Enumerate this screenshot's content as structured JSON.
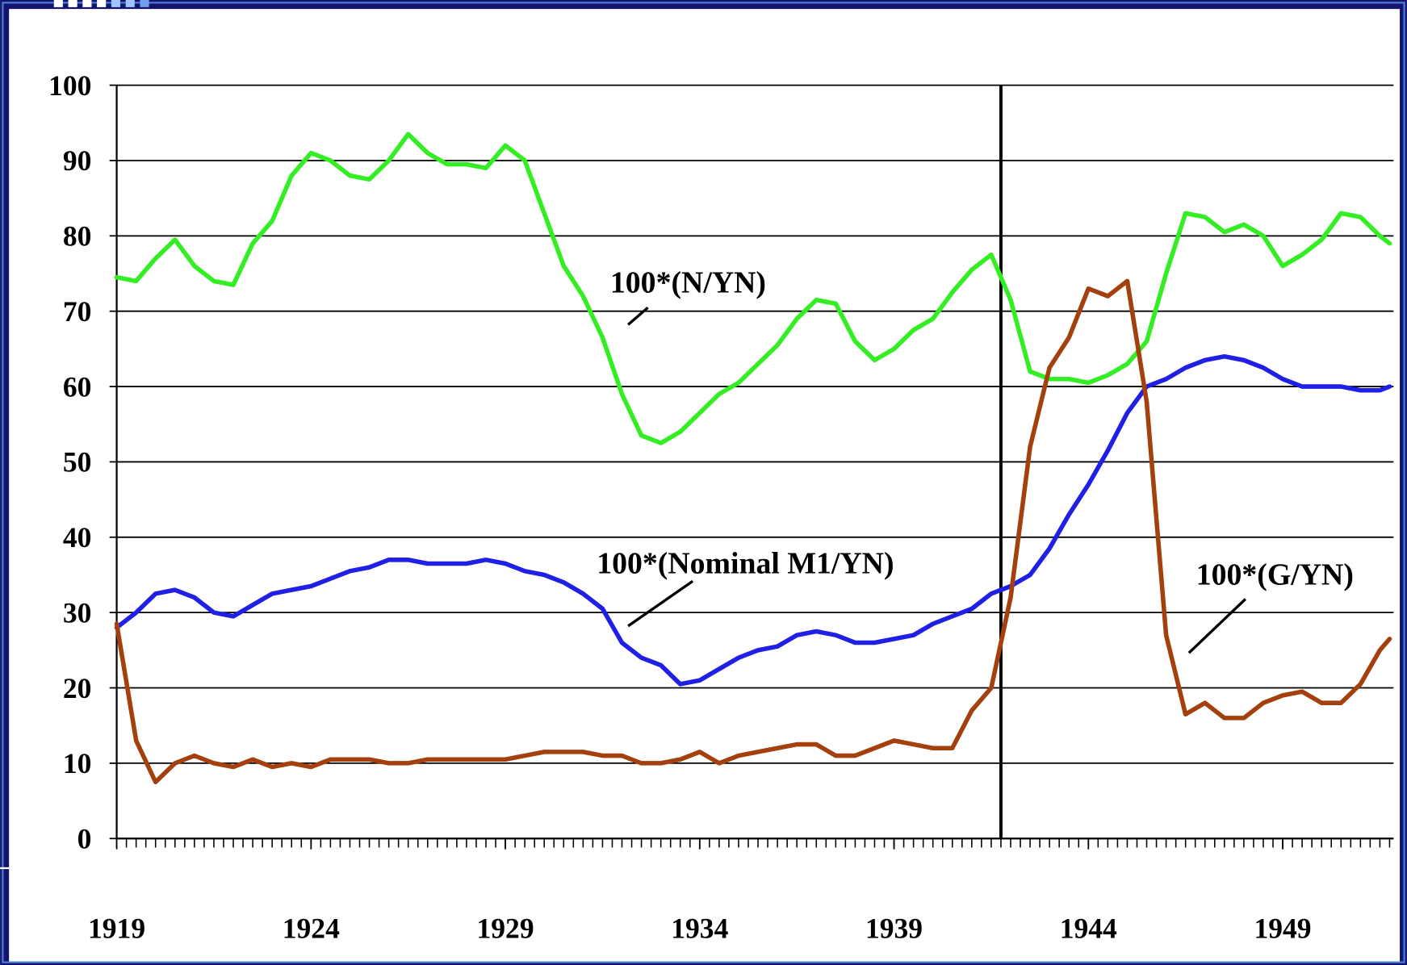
{
  "chart_data": {
    "type": "line",
    "x": [
      1919,
      1919.5,
      1920,
      1920.5,
      1921,
      1921.5,
      1922,
      1922.5,
      1923,
      1923.5,
      1924,
      1924.5,
      1925,
      1925.5,
      1926,
      1926.5,
      1927,
      1927.5,
      1928,
      1928.5,
      1929,
      1929.5,
      1930,
      1930.5,
      1931,
      1931.5,
      1932,
      1932.5,
      1933,
      1933.5,
      1934,
      1934.5,
      1935,
      1935.5,
      1936,
      1936.5,
      1937,
      1937.5,
      1938,
      1938.5,
      1939,
      1939.5,
      1940,
      1940.5,
      1941,
      1941.5,
      1942,
      1942.5,
      1943,
      1943.5,
      1944,
      1944.5,
      1945,
      1945.5,
      1946,
      1946.5,
      1947,
      1947.5,
      1948,
      1948.5,
      1949,
      1949.5,
      1950,
      1950.5,
      1951,
      1951.5,
      1951.75
    ],
    "series": [
      {
        "name": "100*(N/YN)",
        "color": "#33ee22",
        "values": [
          74.5,
          74,
          77,
          79.5,
          76,
          74,
          73.5,
          79,
          82,
          88,
          91,
          90,
          88,
          87.5,
          90,
          93.5,
          91,
          89.5,
          89.5,
          89,
          92,
          90,
          83,
          76,
          72,
          66.5,
          59,
          53.5,
          52.5,
          54,
          56.5,
          59,
          60.5,
          63,
          65.5,
          69,
          71.5,
          71,
          66,
          63.5,
          65,
          67.5,
          69,
          72.5,
          75.5,
          77.5,
          71.5,
          62,
          61,
          61,
          60.5,
          61.5,
          63,
          66,
          75,
          83,
          82.5,
          80.5,
          81.5,
          80,
          76,
          77.5,
          79.5,
          83,
          82.5,
          80,
          79
        ]
      },
      {
        "name": "100*(Nominal M1/YN)",
        "color": "#1f1fe6",
        "values": [
          28,
          30,
          32.5,
          33,
          32,
          30,
          29.5,
          31,
          32.5,
          33,
          33.5,
          34.5,
          35.5,
          36,
          37,
          37,
          36.5,
          36.5,
          36.5,
          37,
          36.5,
          35.5,
          35,
          34,
          32.5,
          30.5,
          26,
          24,
          23,
          20.5,
          21,
          22.5,
          24,
          25,
          25.5,
          27,
          27.5,
          27,
          26,
          26,
          26.5,
          27,
          28.5,
          29.5,
          30.5,
          32.5,
          33.5,
          35,
          38.5,
          43,
          47,
          51.5,
          56.5,
          60,
          61,
          62.5,
          63.5,
          64,
          63.5,
          62.5,
          61,
          60,
          60,
          60,
          59.5,
          59.5,
          60
        ]
      },
      {
        "name": "100*(G/YN)",
        "color": "#a3400e",
        "values": [
          28.5,
          13,
          7.5,
          10,
          11,
          10,
          9.5,
          10.5,
          9.5,
          10,
          9.5,
          10.5,
          10.5,
          10.5,
          10,
          10,
          10.5,
          10.5,
          10.5,
          10.5,
          10.5,
          11,
          11.5,
          11.5,
          11.5,
          11,
          11,
          10,
          10,
          10.5,
          11.5,
          10,
          11,
          11.5,
          12,
          12.5,
          12.5,
          11,
          11,
          12,
          13,
          12.5,
          12,
          12,
          17,
          20,
          32,
          52,
          62.5,
          66.5,
          73,
          72,
          74,
          58,
          27,
          16.5,
          18,
          16,
          16,
          18,
          19,
          19.5,
          18,
          18,
          20.5,
          25,
          26.5
        ]
      }
    ],
    "xlim": [
      1919,
      1951.85
    ],
    "xticks": [
      1919,
      1924,
      1929,
      1934,
      1939,
      1944,
      1949
    ],
    "x_minor_tick_step": 0.25,
    "ylim": [
      0,
      100
    ],
    "yticks": [
      0,
      10,
      20,
      30,
      40,
      50,
      60,
      70,
      80,
      90,
      100
    ],
    "grid": true,
    "vline_x": 1941.75
  }
}
